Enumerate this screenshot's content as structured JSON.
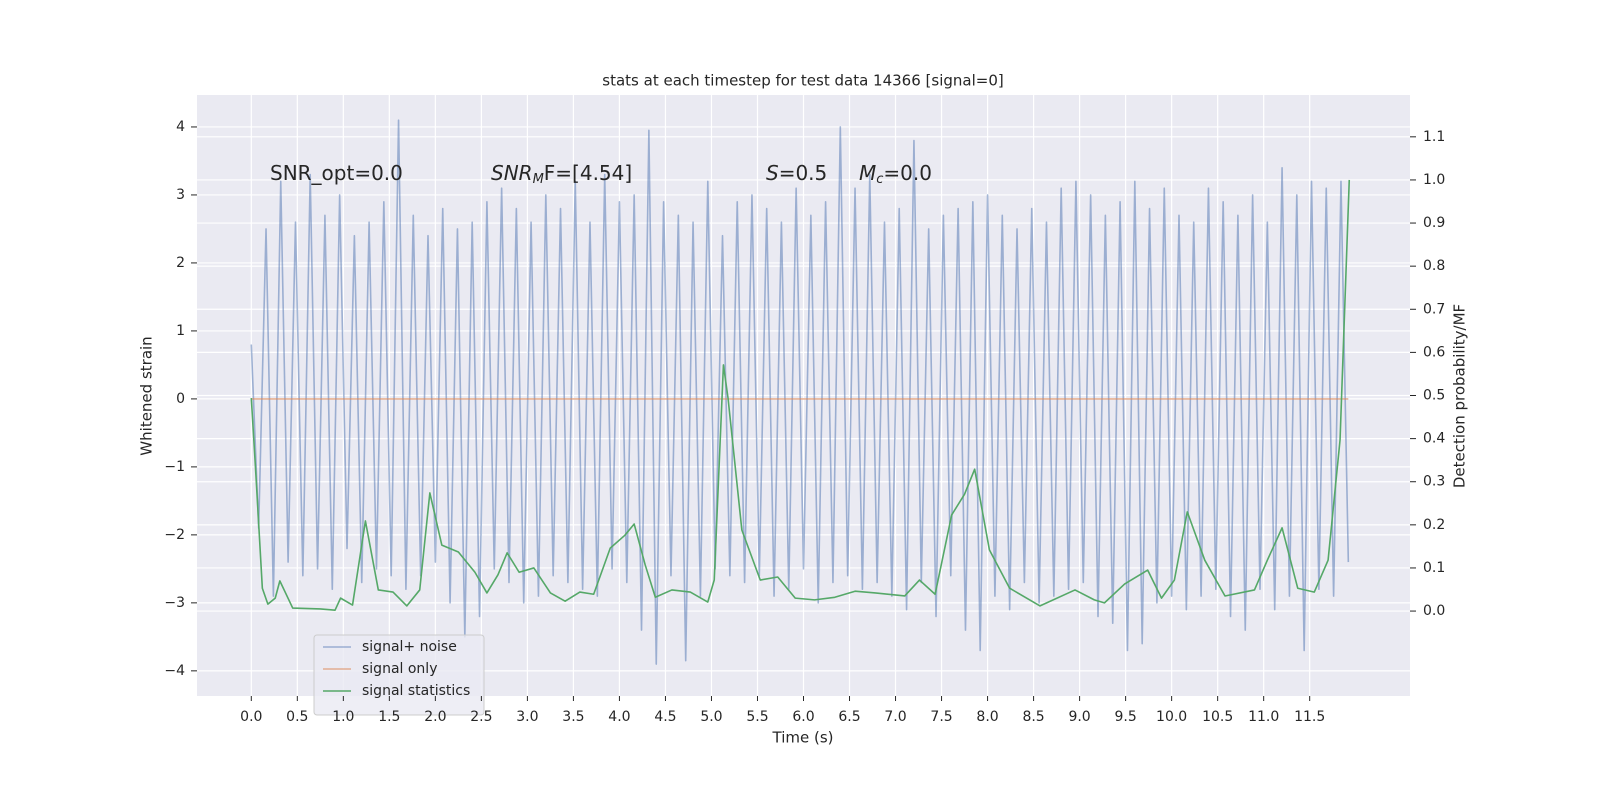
{
  "chart_data": {
    "type": "line",
    "title": "stats at each timestep for test data 14366 [signal=0]",
    "x_label": "Time (s)",
    "y_label": "Whitened strain",
    "y2_label": "Detection probability/MF",
    "annotations": [
      {
        "main": "SNR_opt=0.0"
      },
      {
        "main": "SNR",
        "sub": "M",
        "rest": "F=[4.54]"
      },
      {
        "main": "S",
        "rest": "=0.5"
      },
      {
        "main": "M",
        "sub": "c",
        "rest": "=0.0"
      }
    ],
    "xlim": [
      -0.59,
      12.59
    ],
    "ylim": [
      -4.37,
      4.47
    ],
    "y2lim": [
      -0.197,
      1.197
    ],
    "xticks": [
      {
        "value": 0,
        "label": "0.0"
      },
      0.5,
      {
        "value": 1,
        "label": "1.0"
      },
      1.5,
      {
        "value": 2,
        "label": "2.0"
      },
      2.5,
      {
        "value": 3,
        "label": "3.0"
      },
      3.5,
      {
        "value": 4,
        "label": "4.0"
      },
      4.5,
      {
        "value": 5,
        "label": "5.0"
      },
      5.5,
      {
        "value": 6,
        "label": "6.0"
      },
      6.5,
      {
        "value": 7,
        "label": "7.0"
      },
      7.5,
      {
        "value": 8,
        "label": "8.0"
      },
      8.5,
      {
        "value": 9,
        "label": "9.0"
      },
      9.5,
      {
        "value": 10,
        "label": "10.0"
      },
      10.5,
      {
        "value": 11,
        "label": "11.0"
      },
      11.5
    ],
    "yticks": [
      {
        "value": -4,
        "label": "−4"
      },
      {
        "value": -3,
        "label": "−3"
      },
      {
        "value": -2,
        "label": "−2"
      },
      {
        "value": -1,
        "label": "−1"
      },
      0,
      1,
      2,
      3,
      4
    ],
    "y2ticks": [
      {
        "value": 0,
        "label": "0.0"
      },
      0.1,
      0.2,
      0.3,
      0.4,
      0.5,
      0.6,
      0.7,
      0.8,
      0.9,
      {
        "value": 1,
        "label": "1.0"
      },
      1.1
    ],
    "grid": true,
    "legend": "lower left",
    "series": [
      {
        "name": "signal+ noise",
        "color": "#4c72b0",
        "opacity": 0.5,
        "x": [
          0,
          0.08,
          0.16,
          0.24,
          0.32,
          0.4,
          0.48,
          0.56,
          0.64,
          0.72,
          0.8,
          0.88,
          0.96,
          1.04,
          1.12,
          1.2,
          1.28,
          1.36,
          1.44,
          1.52,
          1.6,
          1.68,
          1.76,
          1.84,
          1.92,
          2,
          2.08,
          2.16,
          2.24,
          2.32,
          2.4,
          2.48,
          2.56,
          2.64,
          2.72,
          2.8,
          2.88,
          2.96,
          3.04,
          3.12,
          3.2,
          3.28,
          3.36,
          3.44,
          3.52,
          3.6,
          3.68,
          3.76,
          3.84,
          3.92,
          4,
          4.08,
          4.16,
          4.24,
          4.32,
          4.4,
          4.48,
          4.56,
          4.64,
          4.72,
          4.8,
          4.88,
          4.96,
          5.04,
          5.12,
          5.2,
          5.28,
          5.36,
          5.44,
          5.52,
          5.6,
          5.68,
          5.76,
          5.84,
          5.92,
          6,
          6.08,
          6.16,
          6.24,
          6.32,
          6.4,
          6.48,
          6.56,
          6.64,
          6.72,
          6.8,
          6.88,
          6.96,
          7.04,
          7.12,
          7.2,
          7.28,
          7.36,
          7.44,
          7.52,
          7.6,
          7.68,
          7.76,
          7.84,
          7.92,
          8,
          8.08,
          8.16,
          8.24,
          8.32,
          8.4,
          8.48,
          8.56,
          8.64,
          8.72,
          8.8,
          8.88,
          8.96,
          9.04,
          9.12,
          9.2,
          9.28,
          9.36,
          9.44,
          9.52,
          9.6,
          9.68,
          9.76,
          9.84,
          9.92,
          10,
          10.08,
          10.16,
          10.24,
          10.32,
          10.4,
          10.48,
          10.56,
          10.64,
          10.72,
          10.8,
          10.88,
          10.96,
          11.04,
          11.12,
          11.2,
          11.28,
          11.36,
          11.44,
          11.52,
          11.6,
          11.68,
          11.76,
          11.84,
          11.92
        ],
        "values": [
          0.8,
          -1.9,
          2.5,
          -2.9,
          3.2,
          -2.4,
          2.6,
          -2.6,
          3.3,
          -2.5,
          2.7,
          -2.8,
          3.0,
          -2.2,
          2.4,
          -2.7,
          2.6,
          -2.5,
          2.9,
          -2.6,
          4.1,
          -2.8,
          2.7,
          -2.6,
          2.4,
          -2.4,
          2.8,
          -3.0,
          2.5,
          -3.5,
          2.6,
          -3.2,
          2.9,
          -2.5,
          3.1,
          -2.7,
          2.8,
          -3.0,
          2.6,
          -2.9,
          3.0,
          -2.6,
          2.8,
          -2.7,
          3.2,
          -2.8,
          2.6,
          -2.9,
          3.3,
          -2.5,
          2.9,
          -2.7,
          3.0,
          -3.4,
          3.95,
          -3.9,
          2.9,
          -2.6,
          2.7,
          -3.85,
          2.6,
          -2.9,
          3.2,
          -2.5,
          2.4,
          -2.6,
          2.9,
          -2.7,
          3.0,
          -2.6,
          2.8,
          -2.9,
          2.6,
          -2.8,
          3.1,
          -2.5,
          2.7,
          -3.0,
          2.9,
          -2.7,
          4.0,
          -2.6,
          3.1,
          -2.8,
          3.3,
          -2.7,
          2.6,
          -2.9,
          2.8,
          -3.1,
          3.8,
          -2.7,
          2.5,
          -3.2,
          2.7,
          -2.6,
          2.8,
          -3.4,
          2.9,
          -3.7,
          3.0,
          -2.9,
          2.7,
          -3.1,
          2.5,
          -2.7,
          2.8,
          -3.0,
          2.6,
          -2.9,
          3.1,
          -2.8,
          3.2,
          -2.7,
          3.0,
          -3.2,
          2.7,
          -3.3,
          2.9,
          -3.7,
          3.2,
          -3.6,
          2.8,
          -3.0,
          3.1,
          -2.9,
          2.7,
          -3.1,
          2.6,
          -2.9,
          3.1,
          -2.8,
          2.9,
          -3.2,
          2.7,
          -3.4,
          3.0,
          -2.8,
          2.6,
          -3.1,
          3.4,
          -2.9,
          3.0,
          -3.7,
          3.2,
          -2.8,
          3.1,
          -2.9,
          3.2,
          -2.4
        ]
      },
      {
        "name": "signal only",
        "color": "#dd8452",
        "opacity": 0.6,
        "x": [
          0,
          11.92
        ],
        "values": [
          0,
          0
        ]
      },
      {
        "name": "signal statistics",
        "color": "#55a868",
        "opacity": 1,
        "axis": "y2",
        "x": [
          0,
          0.05,
          0.12,
          0.18,
          0.26,
          0.31,
          0.45,
          0.75,
          0.91,
          0.97,
          1.1,
          1.24,
          1.38,
          1.54,
          1.69,
          1.83,
          1.94,
          2.07,
          2.25,
          2.43,
          2.56,
          2.68,
          2.78,
          2.91,
          3.07,
          3.25,
          3.41,
          3.57,
          3.72,
          3.9,
          4.06,
          4.16,
          4.28,
          4.39,
          4.57,
          4.77,
          4.96,
          5.03,
          5.13,
          5.18,
          5.33,
          5.53,
          5.72,
          5.91,
          6.12,
          6.34,
          6.56,
          6.78,
          7.1,
          7.26,
          7.43,
          7.61,
          7.75,
          7.86,
          8.02,
          8.24,
          8.57,
          8.95,
          9.16,
          9.27,
          9.49,
          9.74,
          9.89,
          10.03,
          10.17,
          10.36,
          10.58,
          10.9,
          11.04,
          11.2,
          11.37,
          11.55,
          11.7,
          11.83,
          11.93
        ],
        "values": [
          0.494,
          0.316,
          0.053,
          0.016,
          0.03,
          0.07,
          0.007,
          0.005,
          0.002,
          0.03,
          0.014,
          0.209,
          0.049,
          0.044,
          0.012,
          0.049,
          0.274,
          0.153,
          0.137,
          0.09,
          0.042,
          0.084,
          0.135,
          0.09,
          0.1,
          0.042,
          0.023,
          0.044,
          0.039,
          0.146,
          0.176,
          0.202,
          0.107,
          0.032,
          0.049,
          0.044,
          0.021,
          0.072,
          0.571,
          0.494,
          0.188,
          0.072,
          0.079,
          0.03,
          0.026,
          0.032,
          0.046,
          0.042,
          0.035,
          0.072,
          0.039,
          0.223,
          0.271,
          0.329,
          0.142,
          0.053,
          0.012,
          0.049,
          0.026,
          0.019,
          0.063,
          0.095,
          0.03,
          0.072,
          0.23,
          0.118,
          0.035,
          0.049,
          0.118,
          0.193,
          0.053,
          0.044,
          0.118,
          0.397,
          1.0
        ]
      }
    ]
  }
}
